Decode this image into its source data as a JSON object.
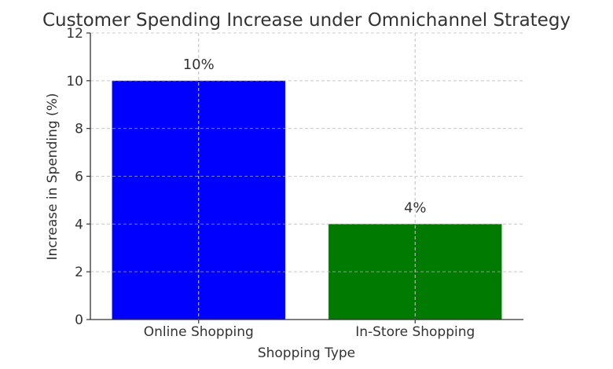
{
  "chart_data": {
    "type": "bar",
    "title": "Customer Spending Increase under Omnichannel Strategy",
    "xlabel": "Shopping Type",
    "ylabel": "Increase in Spending (%)",
    "categories": [
      "Online Shopping",
      "In-Store Shopping"
    ],
    "values": [
      10,
      4
    ],
    "data_labels": [
      "10%",
      "4%"
    ],
    "colors": [
      "#0000ff",
      "#007a00"
    ],
    "ylim": [
      0,
      12
    ],
    "yticks": [
      0,
      2,
      4,
      6,
      8,
      10,
      12
    ],
    "grid": true
  }
}
